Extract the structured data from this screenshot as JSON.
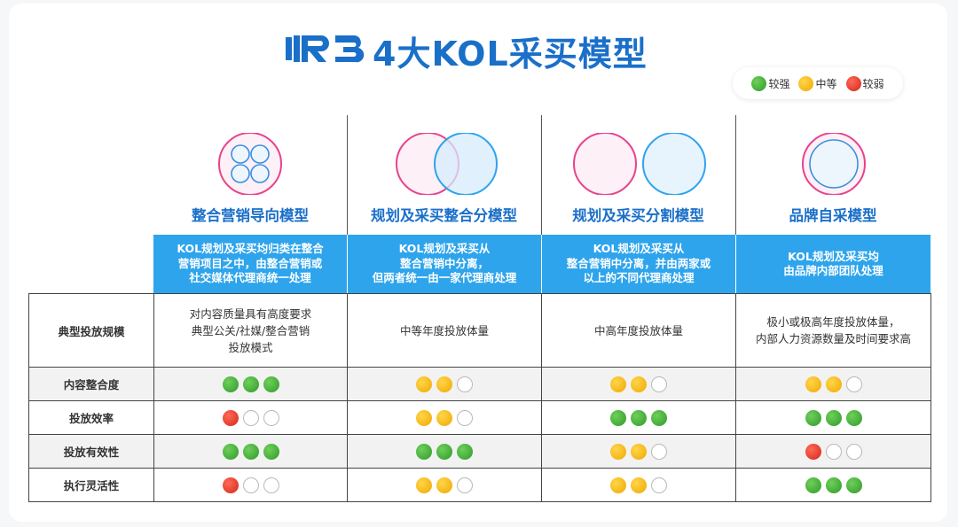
{
  "header": {
    "logo_text": "R3",
    "title": "4大KOL采买模型"
  },
  "legend": [
    {
      "label": "较强",
      "color": "#3aa635"
    },
    {
      "label": "中等",
      "color": "#f5b400"
    },
    {
      "label": "较弱",
      "color": "#e23b2e"
    }
  ],
  "models": [
    {
      "name": "整合营销导向模型",
      "desc": "KOL规划及采买均归类在整合\n营销项目之中，由整合营销或\n社交媒体代理商统一处理"
    },
    {
      "name": "规划及采买整合分模型",
      "desc": "KOL规划及采买从\n整合营销中分离，\n但两者统一由一家代理商处理"
    },
    {
      "name": "规划及采买分割模型",
      "desc": "KOL规划及采买从\n整合营销中分离，并由两家或\n以上的不同代理商处理"
    },
    {
      "name": "品牌自采模型",
      "desc": "KOL规划及采买均\n由品牌内部团队处理"
    }
  ],
  "rows": [
    {
      "label": "典型投放规模",
      "type": "text",
      "cells": [
        "对内容质量具有高度要求\n典型公关/社媒/整合营销\n投放模式",
        "中等年度投放体量",
        "中高年度投放体量",
        "极小或极高年度投放体量，\n内部人力资源数量及时间要求高"
      ]
    },
    {
      "label": "内容整合度",
      "type": "dots",
      "cells": [
        "ggg",
        "yye",
        "yye",
        "yye"
      ]
    },
    {
      "label": "投放效率",
      "type": "dots",
      "cells": [
        "ree",
        "yye",
        "ggg",
        "ggg"
      ]
    },
    {
      "label": "投放有效性",
      "type": "dots",
      "cells": [
        "ggg",
        "ggg",
        "yye",
        "ree"
      ]
    },
    {
      "label": "执行灵活性",
      "type": "dots",
      "cells": [
        "ree",
        "yye",
        "yye",
        "ggg"
      ]
    }
  ]
}
